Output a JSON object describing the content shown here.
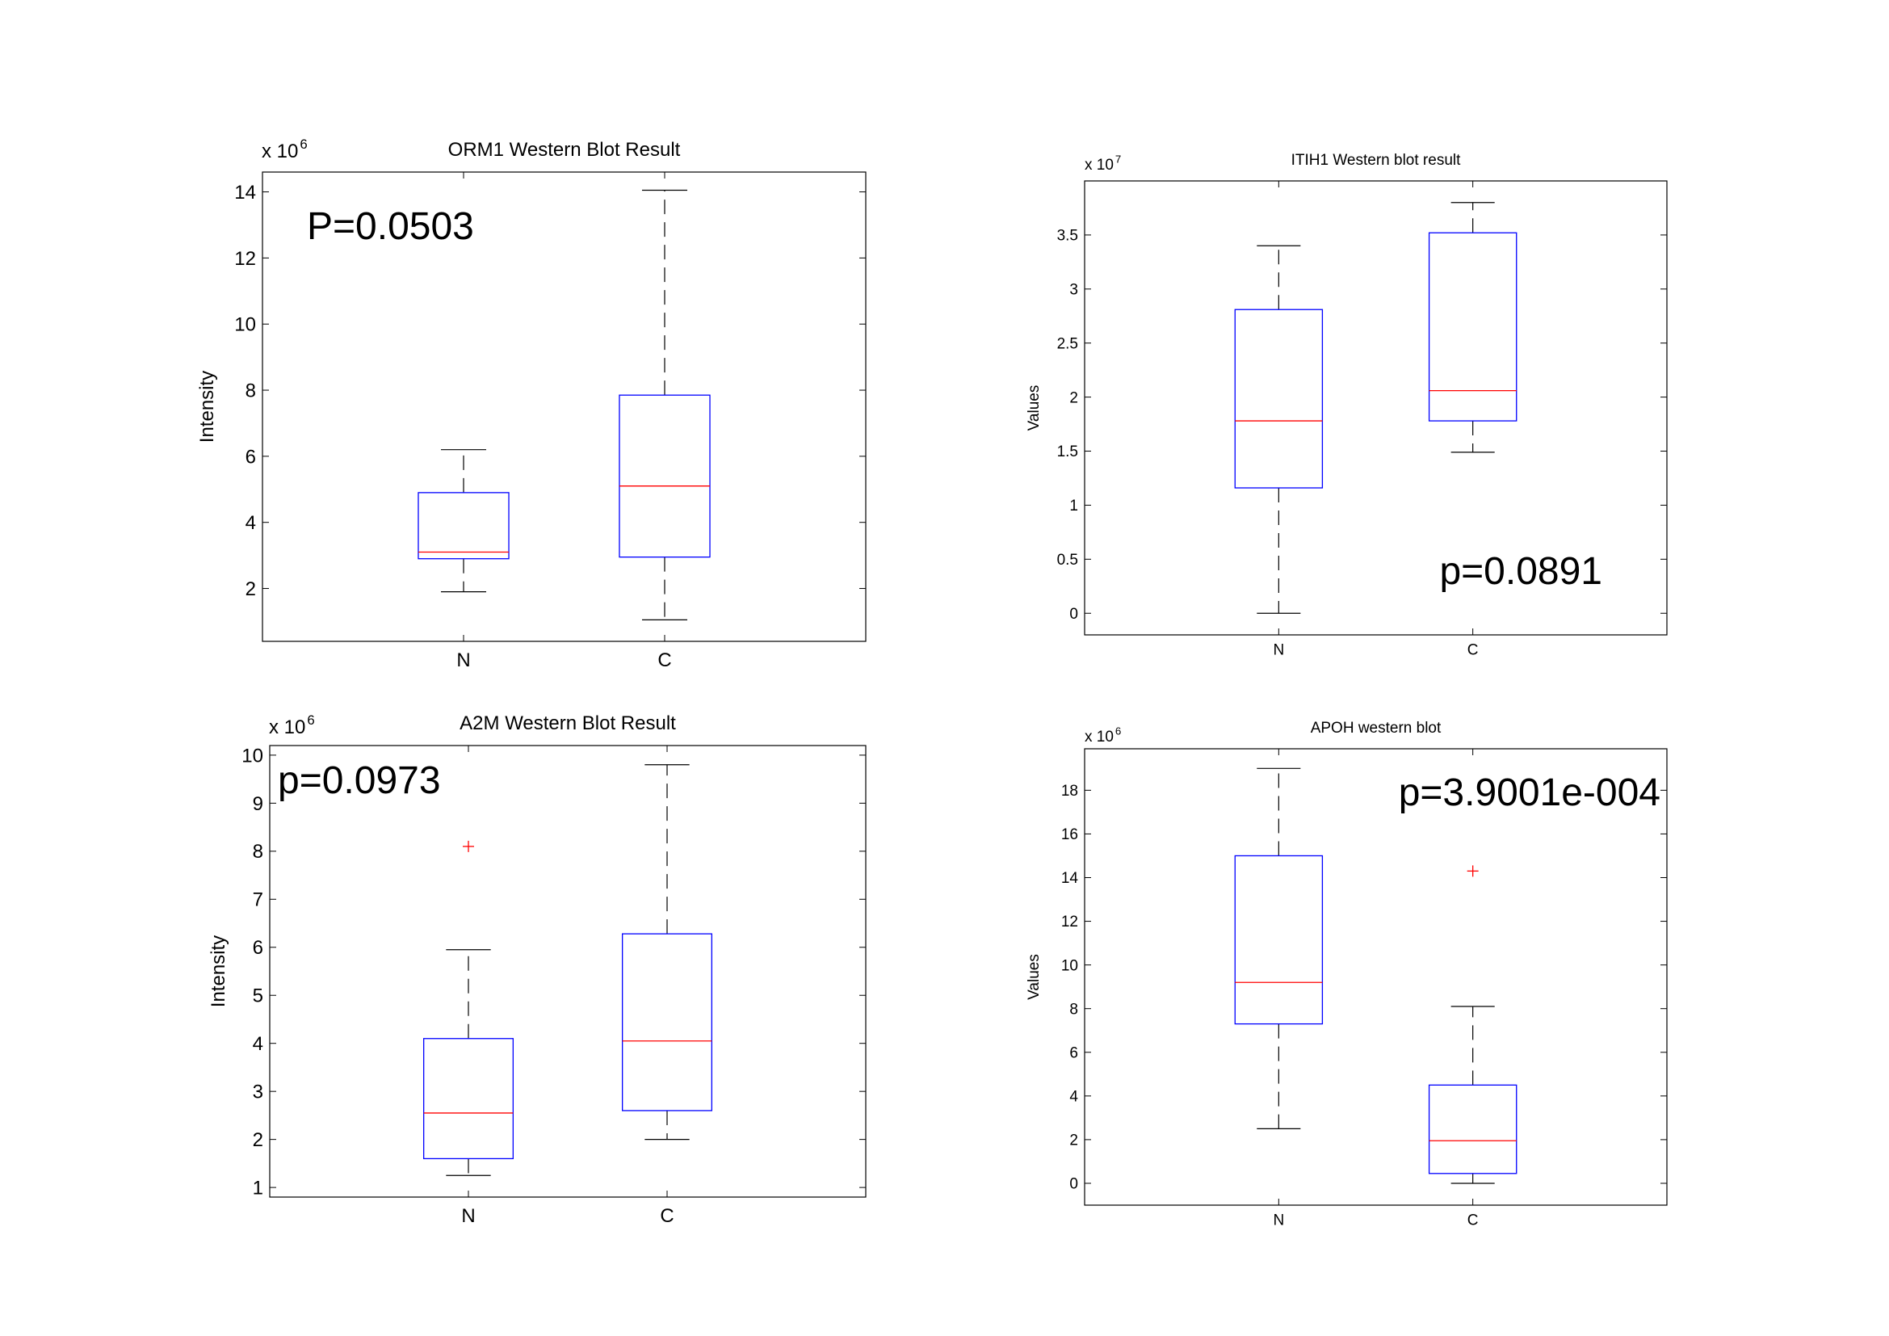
{
  "chart_data": [
    {
      "type": "box",
      "title": "ORM1 Western Blot Result",
      "ylabel": "Intensity",
      "exponent_prefix": "x 10",
      "exponent": "6",
      "categories": [
        "N",
        "C"
      ],
      "ylim": [
        0.4,
        14.6
      ],
      "yticks": [
        2,
        4,
        6,
        8,
        10,
        12,
        14
      ],
      "annotation": "P=0.0503",
      "boxes": [
        {
          "category": "N",
          "whisker_low": 1.9,
          "q1": 2.9,
          "median": 3.1,
          "q3": 4.9,
          "whisker_high": 6.2,
          "outliers": []
        },
        {
          "category": "C",
          "whisker_low": 1.05,
          "q1": 2.95,
          "median": 5.1,
          "q3": 7.85,
          "whisker_high": 14.05,
          "outliers": []
        }
      ]
    },
    {
      "type": "box",
      "title": "ITIH1 Western blot result",
      "ylabel": "Values",
      "exponent_prefix": "x 10",
      "exponent": "7",
      "categories": [
        "N",
        "C"
      ],
      "ylim": [
        -0.2,
        4.0
      ],
      "yticks": [
        0,
        0.5,
        1,
        1.5,
        2,
        2.5,
        3,
        3.5
      ],
      "annotation": "p=0.0891",
      "boxes": [
        {
          "category": "N",
          "whisker_low": 0.0,
          "q1": 1.16,
          "median": 1.78,
          "q3": 2.81,
          "whisker_high": 3.4,
          "outliers": []
        },
        {
          "category": "C",
          "whisker_low": 1.49,
          "q1": 1.78,
          "median": 2.06,
          "q3": 3.52,
          "whisker_high": 3.8,
          "outliers": []
        }
      ]
    },
    {
      "type": "box",
      "title": "A2M Western Blot Result",
      "ylabel": "Intensity",
      "exponent_prefix": "x 10",
      "exponent": "6",
      "categories": [
        "N",
        "C"
      ],
      "ylim": [
        0.8,
        10.2
      ],
      "yticks": [
        1,
        2,
        3,
        4,
        5,
        6,
        7,
        8,
        9,
        10
      ],
      "annotation": "p=0.0973",
      "boxes": [
        {
          "category": "N",
          "whisker_low": 1.25,
          "q1": 1.6,
          "median": 2.55,
          "q3": 4.1,
          "whisker_high": 5.95,
          "outliers": [
            8.1
          ]
        },
        {
          "category": "C",
          "whisker_low": 2.0,
          "q1": 2.6,
          "median": 4.05,
          "q3": 6.28,
          "whisker_high": 9.8,
          "outliers": []
        }
      ]
    },
    {
      "type": "box",
      "title": "APOH western blot",
      "ylabel": "Values",
      "exponent_prefix": "x 10",
      "exponent": "6",
      "categories": [
        "N",
        "C"
      ],
      "ylim": [
        -1.0,
        19.9
      ],
      "yticks": [
        0,
        2,
        4,
        6,
        8,
        10,
        12,
        14,
        16,
        18
      ],
      "annotation": "p=3.9001e-004",
      "boxes": [
        {
          "category": "N",
          "whisker_low": 2.5,
          "q1": 7.3,
          "median": 9.2,
          "q3": 15.0,
          "whisker_high": 19.0,
          "outliers": []
        },
        {
          "category": "C",
          "whisker_low": 0.0,
          "q1": 0.45,
          "median": 1.95,
          "q3": 4.5,
          "whisker_high": 8.1,
          "outliers": [
            14.3
          ]
        }
      ]
    }
  ],
  "colors": {
    "box": "#0000ff",
    "median": "#ff0000",
    "whisker": "#000000",
    "outlier": "#ff0000",
    "axes": "#000000"
  }
}
